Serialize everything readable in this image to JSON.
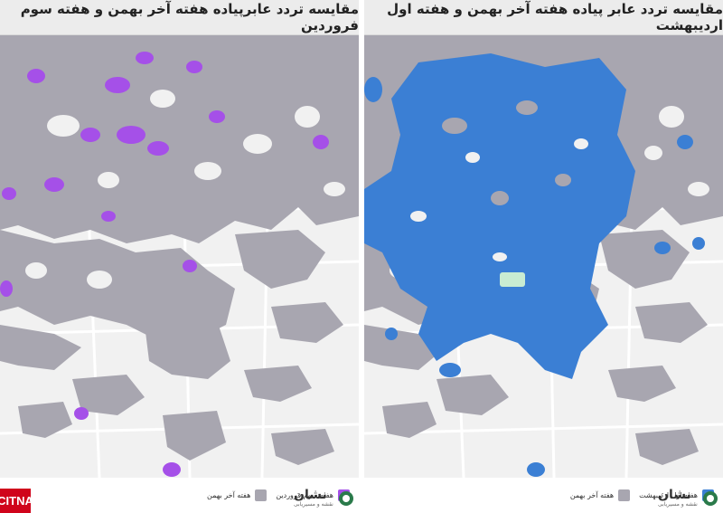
{
  "left_panel": {
    "title": "مقایسه تردد عابرپیاده هفته آخر بهمن و هفته سوم فروردین",
    "legend": [
      {
        "label": "هفته سوم فروردین",
        "color": "#a550e8"
      },
      {
        "label": "هفته آخر بهمن",
        "color": "#a8a6b0"
      }
    ],
    "brand": "نشان",
    "brand_sub": "نقشه و مسیریابی"
  },
  "right_panel": {
    "title": "مقایسه تردد عابر پیاده هفته آخر بهمن و هفته اول اردیبهشت",
    "legend": [
      {
        "label": "هفته اول اردیبهشت",
        "color": "#3b7fd4"
      },
      {
        "label": "هفته آخر بهمن",
        "color": "#a8a6b0"
      }
    ],
    "brand": "نشان",
    "brand_sub": "نقشه و مسیریابی"
  },
  "watermark": "CITNA",
  "colors": {
    "base_map": "#f1f1f1",
    "park": "#c8ecd2",
    "road": "#ffffff",
    "gray_traffic": "#a8a6b0",
    "purple_traffic": "#a550e8",
    "blue_traffic": "#3b7fd4"
  }
}
